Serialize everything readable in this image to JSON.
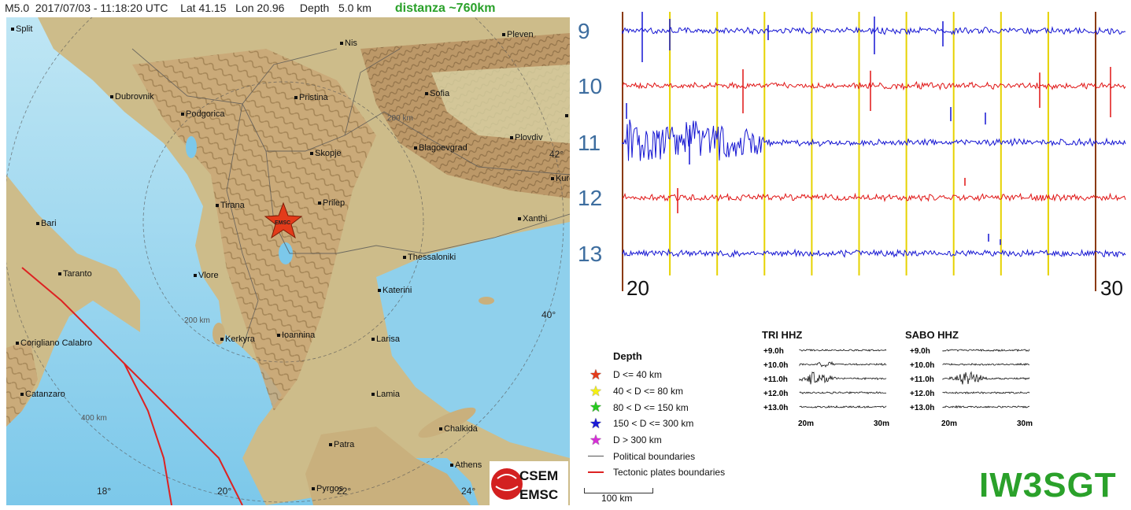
{
  "header": {
    "magnitude": "M5.0",
    "datetime": "2017/07/03 - 11:18:20 UTC",
    "lat": "Lat 41.15",
    "lon": "Lon 20.96",
    "depth": "Depth   5.0 km",
    "distance": "distanza ~760km"
  },
  "map": {
    "cities": [
      {
        "name": "Split"
      },
      {
        "name": "Nis"
      },
      {
        "name": "Pleven"
      },
      {
        "name": "Dubrovnik"
      },
      {
        "name": "Podgorica"
      },
      {
        "name": "Pristina"
      },
      {
        "name": "Sofia"
      },
      {
        "name": "Plovdiv"
      },
      {
        "name": "Skopje"
      },
      {
        "name": "Blagoevgrad"
      },
      {
        "name": "Bari"
      },
      {
        "name": "Tirana"
      },
      {
        "name": "Prilep"
      },
      {
        "name": "Xanthi"
      },
      {
        "name": "Taranto"
      },
      {
        "name": "Vlore"
      },
      {
        "name": "Thessaloniki"
      },
      {
        "name": "Katerini"
      },
      {
        "name": "Kerkyra"
      },
      {
        "name": "Ioannina"
      },
      {
        "name": "Larisa"
      },
      {
        "name": "Corigliano Calabro"
      },
      {
        "name": "Catanzaro"
      },
      {
        "name": "Lamia"
      },
      {
        "name": "Chalkida"
      },
      {
        "name": "Patra"
      },
      {
        "name": "Athens"
      },
      {
        "name": "Pyrgos"
      },
      {
        "name": "Kurd"
      },
      {
        "name": "S"
      }
    ],
    "distance_rings": [
      "200 km",
      "200 km",
      "400 km"
    ],
    "lat_labels": [
      "42°",
      "40°"
    ],
    "lon_labels": [
      "18°",
      "20°",
      "22°",
      "24°"
    ],
    "epicenter_label": "EMSC",
    "logo_top": "CSEM",
    "logo_bottom": "EMSC"
  },
  "seismogram": {
    "rows": [
      "9",
      "10",
      "11",
      "12",
      "13"
    ],
    "row_colors": [
      "#1414d2",
      "#e01414",
      "#1414d2",
      "#e01414",
      "#1414d2"
    ],
    "axis_start": "20",
    "axis_end": "30",
    "marker_color": "#e6d200",
    "start_color": "#8b3a0a",
    "callsign": "IW3SGT"
  },
  "legend": {
    "title": "Depth",
    "items": [
      {
        "label": "D <= 40 km",
        "color": "#e33b1a"
      },
      {
        "label": "40 < D <= 80 km",
        "color": "#f4f014"
      },
      {
        "label": "80 < D <= 150 km",
        "color": "#26c81f"
      },
      {
        "label": "150 < D <= 300 km",
        "color": "#1b1bd6"
      },
      {
        "label": "D > 300 km",
        "color": "#d52fd6"
      }
    ],
    "political": "Political boundaries",
    "tectonic": "Tectonic plates boundaries",
    "political_color": "#555555",
    "tectonic_color": "#dd2222",
    "scale": "100 km"
  },
  "minis": [
    {
      "title": "TRI HHZ",
      "rows": [
        "+9.0h",
        "+10.0h",
        "+11.0h",
        "+12.0h",
        "+13.0h"
      ],
      "x_start": "20m",
      "x_end": "30m"
    },
    {
      "title": "SABO HHZ",
      "rows": [
        "+9.0h",
        "+10.0h",
        "+11.0h",
        "+12.0h",
        "+13.0h"
      ],
      "x_start": "20m",
      "x_end": "30m"
    }
  ]
}
